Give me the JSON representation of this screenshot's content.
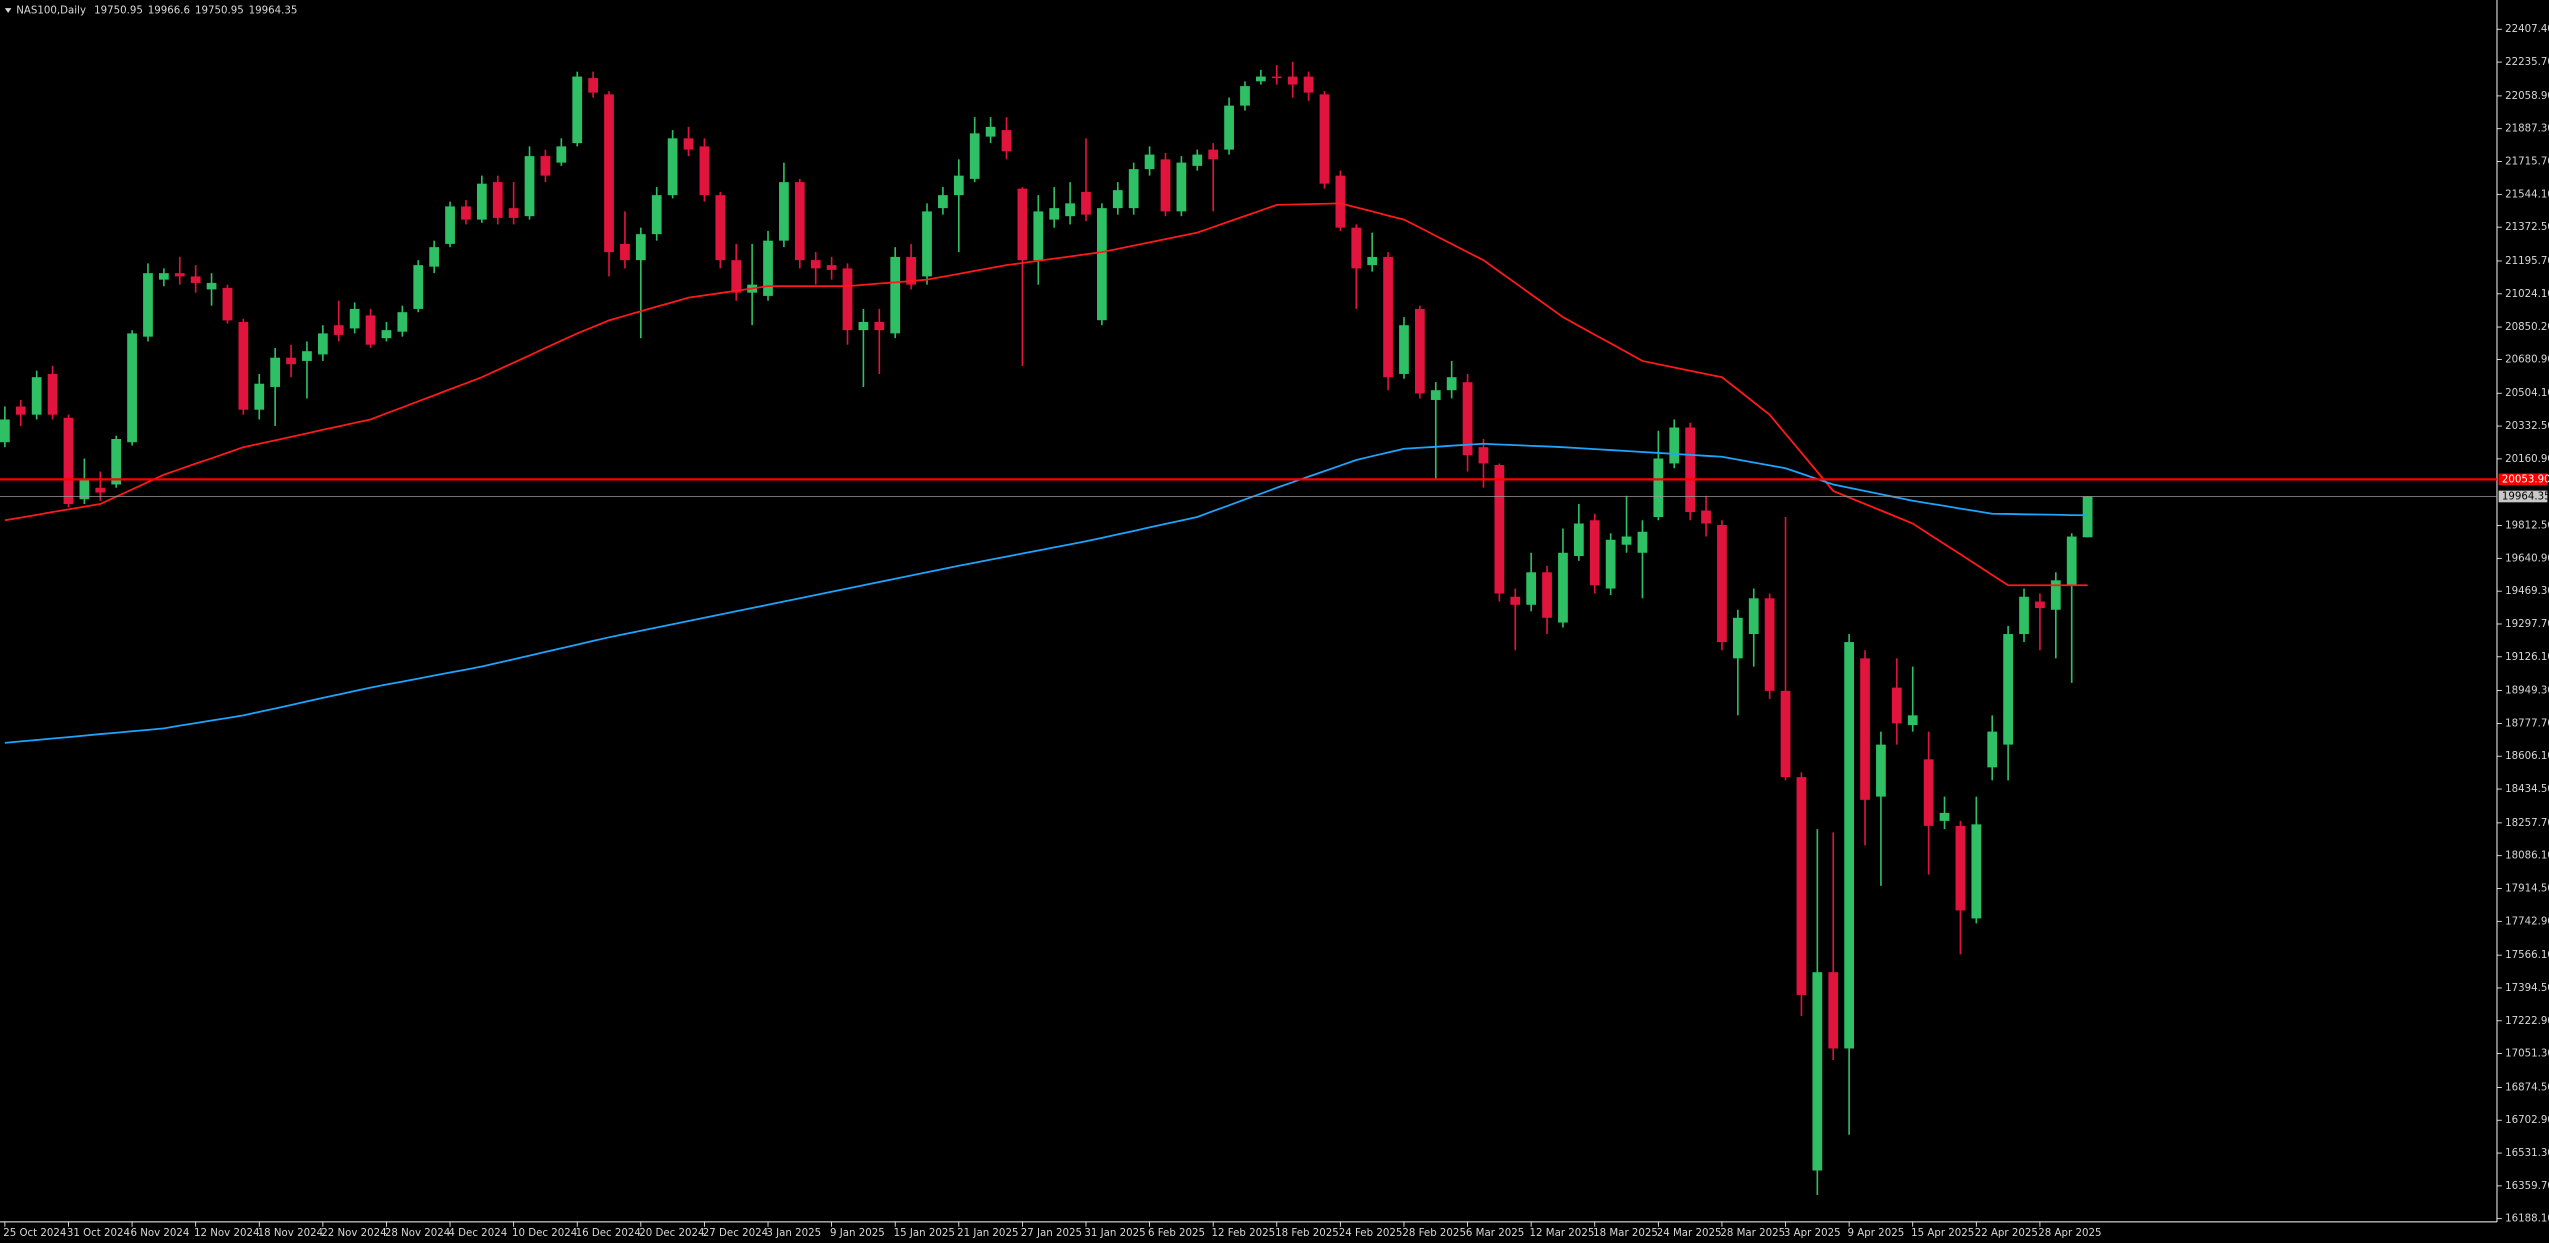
{
  "chart_data": {
    "type": "candlestick",
    "title": "NAS100,Daily",
    "up_color": "#2fbf65",
    "down_color": "#e0143c",
    "categories": [
      "25 Oct 2024",
      null,
      null,
      null,
      "31 Oct 2024",
      null,
      null,
      null,
      "6 Nov 2024",
      null,
      null,
      null,
      "12 Nov 2024",
      null,
      null,
      null,
      "18 Nov 2024",
      null,
      null,
      null,
      "22 Nov 2024",
      null,
      null,
      null,
      "28 Nov 2024",
      null,
      null,
      null,
      "4 Dec 2024",
      null,
      null,
      null,
      "10 Dec 2024",
      null,
      null,
      null,
      "16 Dec 2024",
      null,
      null,
      null,
      "20 Dec 2024",
      null,
      null,
      null,
      "27 Dec 2024",
      null,
      null,
      null,
      "3 Jan 2025",
      null,
      null,
      null,
      "9 Jan 2025",
      null,
      null,
      null,
      "15 Jan 2025",
      null,
      null,
      null,
      "21 Jan 2025",
      null,
      null,
      null,
      "27 Jan 2025",
      null,
      null,
      null,
      "31 Jan 2025",
      null,
      null,
      null,
      "6 Feb 2025",
      null,
      null,
      null,
      "12 Feb 2025",
      null,
      null,
      null,
      "18 Feb 2025",
      null,
      null,
      null,
      "24 Feb 2025",
      null,
      null,
      null,
      "28 Feb 2025",
      null,
      null,
      null,
      "6 Mar 2025",
      null,
      null,
      null,
      "12 Mar 2025",
      null,
      null,
      null,
      "18 Mar 2025",
      null,
      null,
      null,
      "24 Mar 2025",
      null,
      null,
      null,
      "28 Mar 2025",
      null,
      null,
      null,
      "3 Apr 2025",
      null,
      null,
      null,
      "9 Apr 2025",
      null,
      null,
      null,
      "15 Apr 2025",
      null,
      null,
      null,
      "22 Apr 2025",
      null,
      null,
      null,
      "28 Apr 2025",
      null,
      null,
      null
    ],
    "open": [
      20248,
      20435,
      20392,
      20605,
      20376,
      19950,
      20010,
      20027,
      20248,
      20800,
      21098,
      21132,
      21115,
      21047,
      21055,
      20877,
      20418,
      20537,
      20690,
      20673,
      20707,
      20860,
      20843,
      20911,
      20792,
      20826,
      20945,
      21166,
      21285,
      21481,
      21412,
      21608,
      21472,
      21430,
      21744,
      21710,
      21812,
      22152,
      22067,
      21285,
      21200,
      21336,
      21540,
      21837,
      21795,
      21540,
      21200,
      21030,
      21013,
      21302,
      21608,
      21200,
      21174,
      21157,
      20834,
      20877,
      20817,
      21217,
      21115,
      21472,
      21540,
      21625,
      21846,
      21880,
      21574,
      21200,
      21412,
      21430,
      21557,
      20886,
      21472,
      21472,
      21676,
      21727,
      21455,
      21693,
      21778,
      21778,
      22008,
      22135,
      22160,
      22160,
      22160,
      22067,
      21642,
      21370,
      21174,
      21217,
      20605,
      20945,
      20469,
      20520,
      20562,
      20222,
      20129,
      19440,
      19398,
      19568,
      19305,
      19653,
      19840,
      19483,
      19712,
      19670,
      19857,
      20137,
      20325,
      19891,
      19815,
      19118,
      19245,
      19432,
      18948,
      18497,
      16440,
      17477,
      17078,
      19118,
      18395,
      18965,
      18769,
      18590,
      18268,
      18242,
      17758,
      18548,
      18667,
      19245,
      19415,
      19372,
      19500,
      19750.95
    ],
    "high": [
      20435,
      20469,
      20622,
      20647,
      20392,
      20163,
      20095,
      20282,
      20834,
      21183,
      21157,
      21217,
      21174,
      21132,
      21072,
      20894,
      20605,
      20741,
      20758,
      20775,
      20860,
      20988,
      20979,
      20945,
      20877,
      20962,
      21200,
      21302,
      21506,
      21514,
      21642,
      21642,
      21608,
      21795,
      21778,
      21837,
      22186,
      22186,
      22084,
      21455,
      21370,
      21582,
      21880,
      21897,
      21837,
      21557,
      21285,
      21285,
      21353,
      21710,
      21625,
      21242,
      21217,
      21183,
      20945,
      20945,
      21268,
      21285,
      21497,
      21582,
      21727,
      21948,
      21948,
      21948,
      21582,
      21540,
      21582,
      21608,
      21837,
      21497,
      21608,
      21710,
      21795,
      21761,
      21744,
      21778,
      21812,
      22050,
      22135,
      22195,
      22220,
      22237,
      22186,
      22084,
      21668,
      21387,
      21344,
      21242,
      20902,
      20962,
      20562,
      20673,
      20605,
      20265,
      20137,
      19483,
      19670,
      19602,
      19797,
      19925,
      19874,
      19772,
      19968,
      19840,
      20308,
      20367,
      20350,
      19968,
      19840,
      19372,
      19483,
      19457,
      19857,
      18522,
      18225,
      18208,
      19245,
      19160,
      18735,
      19118,
      19075,
      18735,
      18395,
      18268,
      18395,
      18820,
      19288,
      19483,
      19457,
      19568,
      19772,
      19966.6
    ],
    "low": [
      20222,
      20333,
      20367,
      20367,
      19908,
      19925,
      19942,
      20010,
      20231,
      20775,
      21064,
      21072,
      21030,
      20962,
      20868,
      20392,
      20367,
      20333,
      20588,
      20477,
      20673,
      20775,
      20817,
      20741,
      20775,
      20800,
      20928,
      21132,
      21268,
      21387,
      21395,
      21387,
      21387,
      21412,
      21608,
      21693,
      21795,
      22050,
      21115,
      21157,
      20792,
      21302,
      21523,
      21744,
      21506,
      21157,
      20988,
      20860,
      20988,
      21268,
      21157,
      21072,
      21098,
      20758,
      20537,
      20605,
      20792,
      21047,
      21072,
      21438,
      21242,
      21608,
      21812,
      21727,
      20647,
      21072,
      21370,
      21387,
      21404,
      20860,
      21438,
      21438,
      21642,
      21430,
      21430,
      21668,
      21455,
      21752,
      21982,
      22118,
      22118,
      22050,
      22033,
      21574,
      21353,
      20945,
      21140,
      20520,
      20580,
      20477,
      20052,
      20477,
      20095,
      20010,
      19415,
      19160,
      19364,
      19245,
      19279,
      19628,
      19457,
      19449,
      19670,
      19432,
      19840,
      20112,
      19840,
      19755,
      19160,
      18820,
      19075,
      18905,
      18480,
      17248,
      16312,
      17018,
      16627,
      18140,
      17928,
      18667,
      18735,
      17987,
      18225,
      17570,
      17732,
      18480,
      18480,
      19203,
      19160,
      19118,
      18990,
      19750.95
    ],
    "close": [
      20367,
      20392,
      20588,
      20392,
      19925,
      20052,
      19985,
      20265,
      20817,
      21132,
      21132,
      21115,
      21081,
      21081,
      20885,
      20418,
      20554,
      20690,
      20656,
      20724,
      20817,
      20809,
      20945,
      20758,
      20834,
      20928,
      21174,
      21268,
      21481,
      21412,
      21600,
      21421,
      21421,
      21744,
      21642,
      21795,
      22160,
      22076,
      21242,
      21200,
      21336,
      21540,
      21837,
      21778,
      21540,
      21200,
      21030,
      21072,
      21302,
      21608,
      21200,
      21157,
      21149,
      20834,
      20877,
      20834,
      21217,
      21072,
      21455,
      21540,
      21642,
      21863,
      21897,
      21769,
      21200,
      21455,
      21472,
      21497,
      21438,
      21472,
      21566,
      21676,
      21752,
      21455,
      21710,
      21752,
      21727,
      22008,
      22110,
      22160,
      22152,
      22118,
      22076,
      21600,
      21370,
      21157,
      21217,
      20588,
      20860,
      20503,
      20520,
      20588,
      20180,
      20137,
      19457,
      19398,
      19568,
      19330,
      19670,
      19823,
      19500,
      19738,
      19755,
      19780,
      20163,
      20325,
      19883,
      19823,
      19203,
      19330,
      19432,
      18948,
      18497,
      17358,
      17477,
      17078,
      19203,
      18378,
      18667,
      18778,
      18820,
      18242,
      18310,
      17800,
      18250,
      18735,
      19245,
      19440,
      19381,
      19526,
      19755,
      19964.35
    ],
    "series": [
      {
        "color": "#ff1a1a",
        "values": [
          19840,
          19854,
          19868,
          19883,
          19897,
          19911,
          19925,
          19963,
          20001,
          20040,
          20078,
          20107,
          20136,
          20164,
          20193,
          20222,
          20240,
          20258,
          20276,
          20294,
          20313,
          20331,
          20349,
          20367,
          20399,
          20430,
          20462,
          20493,
          20525,
          20556,
          20588,
          20626,
          20664,
          20702,
          20741,
          20779,
          20817,
          20851,
          20885,
          20909,
          20933,
          20957,
          20980,
          21004,
          21016,
          21028,
          21040,
          21052,
          21064,
          21064,
          21064,
          21064,
          21064,
          21064,
          21071,
          21078,
          21084,
          21091,
          21098,
          21113,
          21128,
          21144,
          21159,
          21174,
          21185,
          21197,
          21208,
          21219,
          21231,
          21242,
          21259,
          21276,
          21293,
          21310,
          21327,
          21344,
          21373,
          21402,
          21431,
          21460,
          21489,
          21491,
          21493,
          21495,
          21497,
          21476,
          21455,
          21433,
          21412,
          21370,
          21327,
          21285,
          21242,
          21200,
          21140,
          21081,
          21021,
          20962,
          20902,
          20856,
          20810,
          20765,
          20719,
          20673,
          20656,
          20639,
          20622,
          20605,
          20588,
          20523,
          20457,
          20392,
          20292,
          20193,
          20093,
          19993,
          19959,
          19925,
          19891,
          19857,
          19823,
          19769,
          19715,
          19662,
          19608,
          19554,
          19500,
          19500,
          19500,
          19500,
          19500,
          19500
        ]
      },
      {
        "color": "#1ea4ff",
        "values": [
          18676,
          18684,
          18691,
          18699,
          18706,
          18714,
          18722,
          18729,
          18737,
          18744,
          18752,
          18766,
          18779,
          18793,
          18806,
          18820,
          18838,
          18856,
          18874,
          18893,
          18911,
          18929,
          18947,
          18965,
          18981,
          18996,
          19012,
          19028,
          19044,
          19059,
          19075,
          19094,
          19113,
          19132,
          19152,
          19171,
          19190,
          19209,
          19228,
          19245,
          19262,
          19279,
          19296,
          19313,
          19330,
          19347,
          19364,
          19381,
          19398,
          19415,
          19432,
          19449,
          19466,
          19483,
          19500,
          19517,
          19534,
          19551,
          19568,
          19585,
          19602,
          19618,
          19634,
          19650,
          19666,
          19682,
          19698,
          19714,
          19730,
          19748,
          19766,
          19784,
          19803,
          19821,
          19839,
          19857,
          19888,
          19918,
          19949,
          19979,
          20010,
          20039,
          20068,
          20097,
          20126,
          20155,
          20175,
          20194,
          20214,
          20219,
          20224,
          20230,
          20235,
          20240,
          20236,
          20233,
          20229,
          20226,
          20222,
          20217,
          20212,
          20207,
          20202,
          20197,
          20192,
          20187,
          20182,
          20177,
          20172,
          20157,
          20142,
          20127,
          20112,
          20084,
          20055,
          20027,
          20010,
          19993,
          19976,
          19959,
          19942,
          19928,
          19915,
          19901,
          19888,
          19874,
          19873,
          19871,
          19870,
          19869,
          19867,
          19866
        ]
      }
    ],
    "hline": {
      "value": 20053.9,
      "label": "20053.90",
      "color": "#ff0000"
    },
    "ylim": [
      16171.4,
      22560.3
    ],
    "yticks": [
      {
        "value": 22407.4,
        "label": "22407.40"
      },
      {
        "value": 22235.7,
        "label": "22235.70"
      },
      {
        "value": 22058.9,
        "label": "22058.90"
      },
      {
        "value": 21887.3,
        "label": "21887.30"
      },
      {
        "value": 21715.7,
        "label": "21715.70"
      },
      {
        "value": 21544.1,
        "label": "21544.10"
      },
      {
        "value": 21372.5,
        "label": "21372.50"
      },
      {
        "value": 21195.7,
        "label": "21195.70"
      },
      {
        "value": 21024.1,
        "label": "21024.10"
      },
      {
        "value": 20850.2,
        "label": "20850.20"
      },
      {
        "value": 20680.9,
        "label": "20680.90"
      },
      {
        "value": 20504.1,
        "label": "20504.10"
      },
      {
        "value": 20332.5,
        "label": "20332.50"
      },
      {
        "value": 20160.9,
        "label": "20160.90"
      },
      {
        "value": 19812.5,
        "label": "19812.50"
      },
      {
        "value": 19640.9,
        "label": "19640.90"
      },
      {
        "value": 19469.3,
        "label": "19469.30"
      },
      {
        "value": 19297.7,
        "label": "19297.70"
      },
      {
        "value": 19126.1,
        "label": "19126.10"
      },
      {
        "value": 18949.3,
        "label": "18949.30"
      },
      {
        "value": 18777.7,
        "label": "18777.70"
      },
      {
        "value": 18606.1,
        "label": "18606.10"
      },
      {
        "value": 18434.5,
        "label": "18434.50"
      },
      {
        "value": 18257.7,
        "label": "18257.70"
      },
      {
        "value": 18086.1,
        "label": "18086.10"
      },
      {
        "value": 17914.5,
        "label": "17914.50"
      },
      {
        "value": 17742.9,
        "label": "17742.90"
      },
      {
        "value": 17566.1,
        "label": "17566.10"
      },
      {
        "value": 17394.5,
        "label": "17394.50"
      },
      {
        "value": 17222.9,
        "label": "17222.90"
      },
      {
        "value": 17051.3,
        "label": "17051.30"
      },
      {
        "value": 16874.5,
        "label": "16874.50"
      },
      {
        "value": 16702.9,
        "label": "16702.90"
      },
      {
        "value": 16531.3,
        "label": "16531.30"
      },
      {
        "value": 16359.7,
        "label": "16359.70"
      },
      {
        "value": 16188.1,
        "label": "16188.10"
      }
    ]
  }
}
